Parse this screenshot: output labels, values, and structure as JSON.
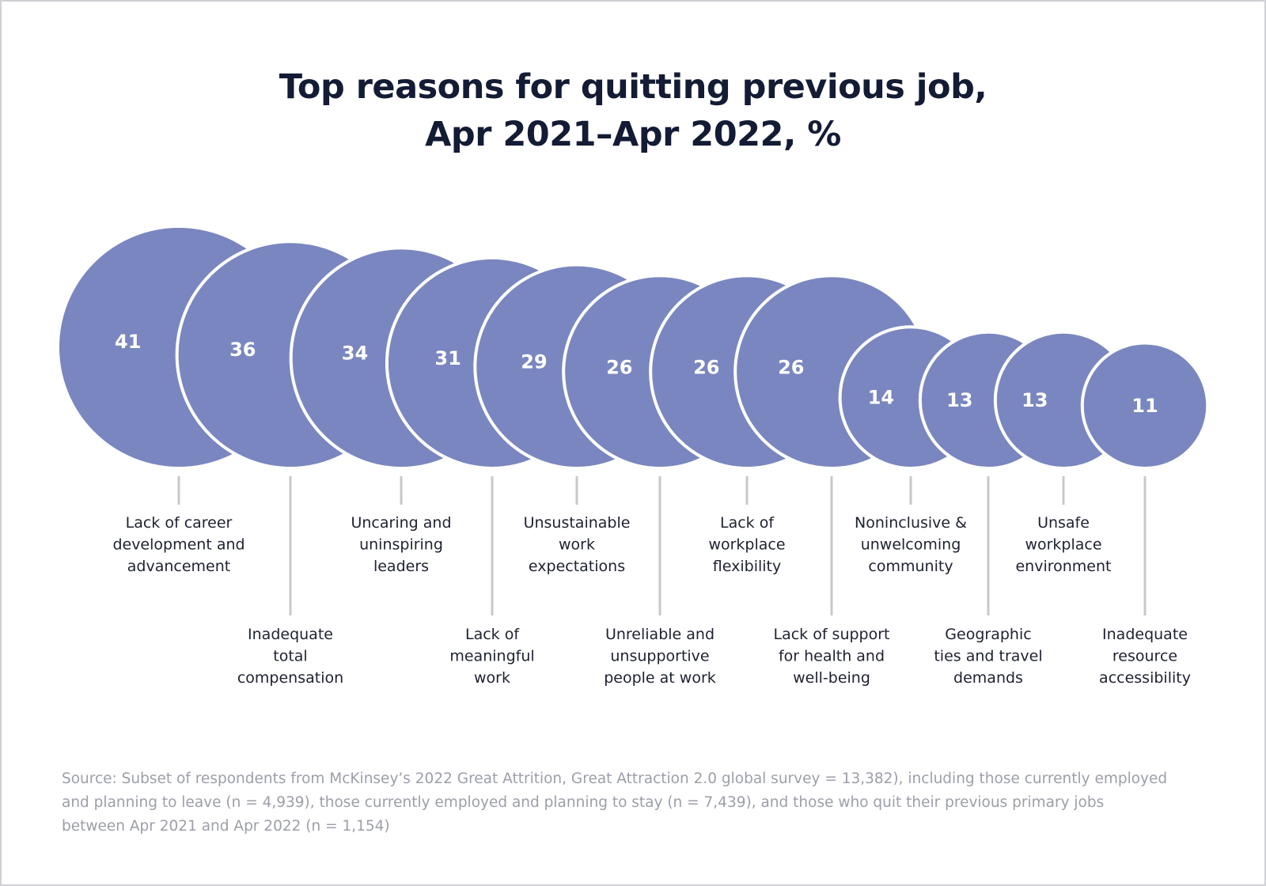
{
  "title": {
    "line1": "Top reasons for quitting previous job,",
    "line2": "Apr 2021–Apr 2022, %"
  },
  "chart_data": {
    "type": "bubble",
    "title": "Top reasons for quitting previous job, Apr 2021–Apr 2022, %",
    "unit": "%",
    "categories": [
      "Lack of career development and advancement",
      "Inadequate total compensation",
      "Uncaring and uninspiring leaders",
      "Lack of meaningful work",
      "Unsustainable work expectations",
      "Unreliable and unsupportive people at work",
      "Lack of workplace flexibility",
      "Lack of support for health and well-being",
      "Noninclusive & unwelcoming community",
      "Geographic ties and travel demands",
      "Unsafe workplace environment",
      "Inadequate resource accessibility"
    ],
    "category_lines": [
      [
        "Lack of career",
        "development and",
        "advancement"
      ],
      [
        "Inadequate",
        "total",
        "compensation"
      ],
      [
        "Uncaring and",
        "uninspiring",
        "leaders"
      ],
      [
        "Lack of",
        "meaningful",
        "work"
      ],
      [
        "Unsustainable",
        "work",
        "expectations"
      ],
      [
        "Unreliable and",
        "unsupportive",
        "people at work"
      ],
      [
        "Lack of",
        "workplace",
        "flexibility"
      ],
      [
        "Lack of support",
        "for health and",
        "well-being"
      ],
      [
        "Noninclusive &",
        "unwelcoming",
        "community"
      ],
      [
        "Geographic",
        "ties and travel",
        "demands"
      ],
      [
        "Unsafe",
        "workplace",
        "environment"
      ],
      [
        "Inadequate",
        "resource",
        "accessibility"
      ]
    ],
    "values": [
      41,
      36,
      34,
      31,
      29,
      26,
      26,
      26,
      14,
      13,
      13,
      11
    ],
    "bubble_color": "#7a86bf"
  },
  "source": "Source: Subset of respondents from McKinsey’s 2022 Great Attrition, Great Attraction 2.0 global survey = 13,382), including those currently employed and planning to leave (n = 4,939), those currently employed and planning to stay (n = 7,439), and those who quit their previous primary jobs between Apr 2021 and Apr 2022 (n = 1,154)"
}
